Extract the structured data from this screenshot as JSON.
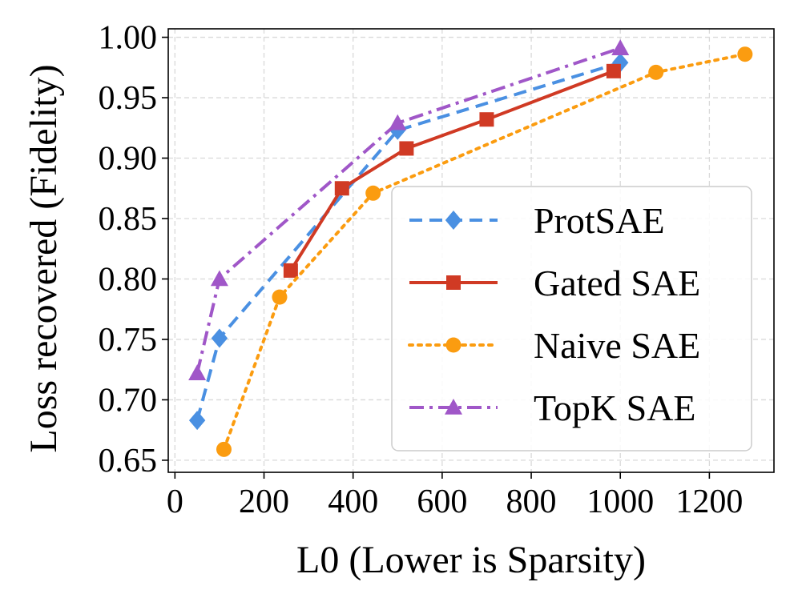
{
  "chart_data": {
    "type": "line",
    "title": "",
    "xlabel": "L0 (Lower is Sparsity)",
    "ylabel": "Loss recovered (Fidelity)",
    "xlim": [
      -15,
      1345
    ],
    "ylim": [
      0.64,
      1.007
    ],
    "xticks": [
      0,
      200,
      400,
      600,
      800,
      1000,
      1200
    ],
    "xtick_labels": [
      "0",
      "200",
      "400",
      "600",
      "800",
      "1000",
      "1200"
    ],
    "yticks": [
      0.65,
      0.7,
      0.75,
      0.8,
      0.85,
      0.9,
      0.95,
      1.0
    ],
    "ytick_labels": [
      "0.65",
      "0.70",
      "0.75",
      "0.80",
      "0.85",
      "0.90",
      "0.95",
      "1.00"
    ],
    "grid": true,
    "legend_position": "center-right",
    "series": [
      {
        "name": "ProtSAE",
        "color": "#4a90e2",
        "dash": "dashed",
        "marker": "diamond",
        "x": [
          50,
          100,
          500,
          1000
        ],
        "y": [
          0.683,
          0.751,
          0.923,
          0.979
        ]
      },
      {
        "name": "Gated SAE",
        "color": "#d03a24",
        "dash": "solid",
        "marker": "square",
        "x": [
          260,
          375,
          520,
          700,
          985
        ],
        "y": [
          0.807,
          0.875,
          0.908,
          0.932,
          0.972
        ]
      },
      {
        "name": "Naive SAE",
        "color": "#fb9c10",
        "dash": "dotted",
        "marker": "circle",
        "x": [
          110,
          235,
          445,
          1080,
          1280
        ],
        "y": [
          0.659,
          0.785,
          0.871,
          0.971,
          0.986
        ]
      },
      {
        "name": "TopK SAE",
        "color": "#a057c8",
        "dash": "dashdot",
        "marker": "triangle",
        "x": [
          50,
          100,
          500,
          1000
        ],
        "y": [
          0.722,
          0.8,
          0.929,
          0.991
        ]
      }
    ]
  }
}
